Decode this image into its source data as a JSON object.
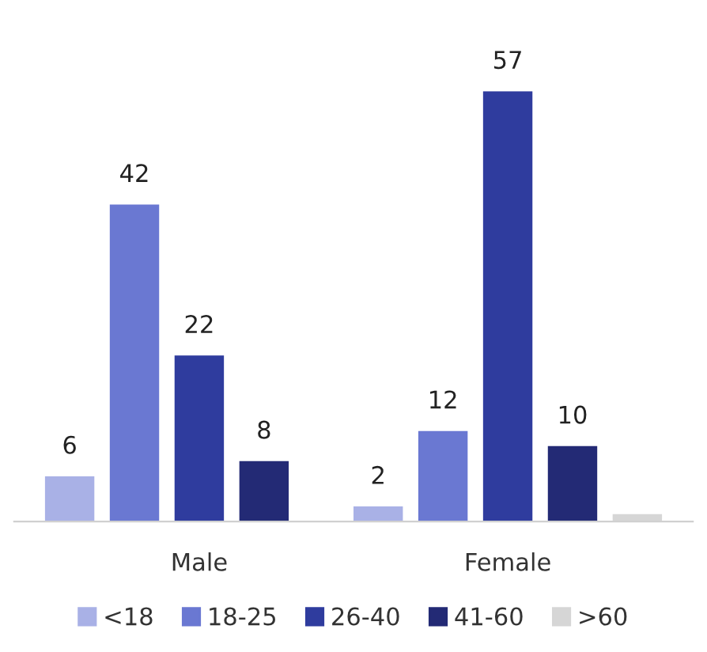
{
  "chart_data": {
    "type": "bar",
    "categories": [
      "Male",
      "Female"
    ],
    "series": [
      {
        "name": "<18",
        "color": "#a9b1e6",
        "values": [
          6,
          2
        ],
        "value_labels": [
          "6",
          "2"
        ]
      },
      {
        "name": "18-25",
        "color": "#6a78d2",
        "values": [
          42,
          12
        ],
        "value_labels": [
          "42",
          "12"
        ]
      },
      {
        "name": "26-40",
        "color": "#2f3c9e",
        "values": [
          22,
          57
        ],
        "value_labels": [
          "22",
          "57"
        ]
      },
      {
        "name": "41-60",
        "color": "#232a75",
        "values": [
          8,
          10
        ],
        "value_labels": [
          "8",
          "10"
        ]
      },
      {
        "name": ">60",
        "color": "#d6d6d6",
        "values": [
          null,
          1
        ],
        "value_labels": [
          null,
          null
        ]
      }
    ],
    "legend": "bottom",
    "grid": false
  }
}
